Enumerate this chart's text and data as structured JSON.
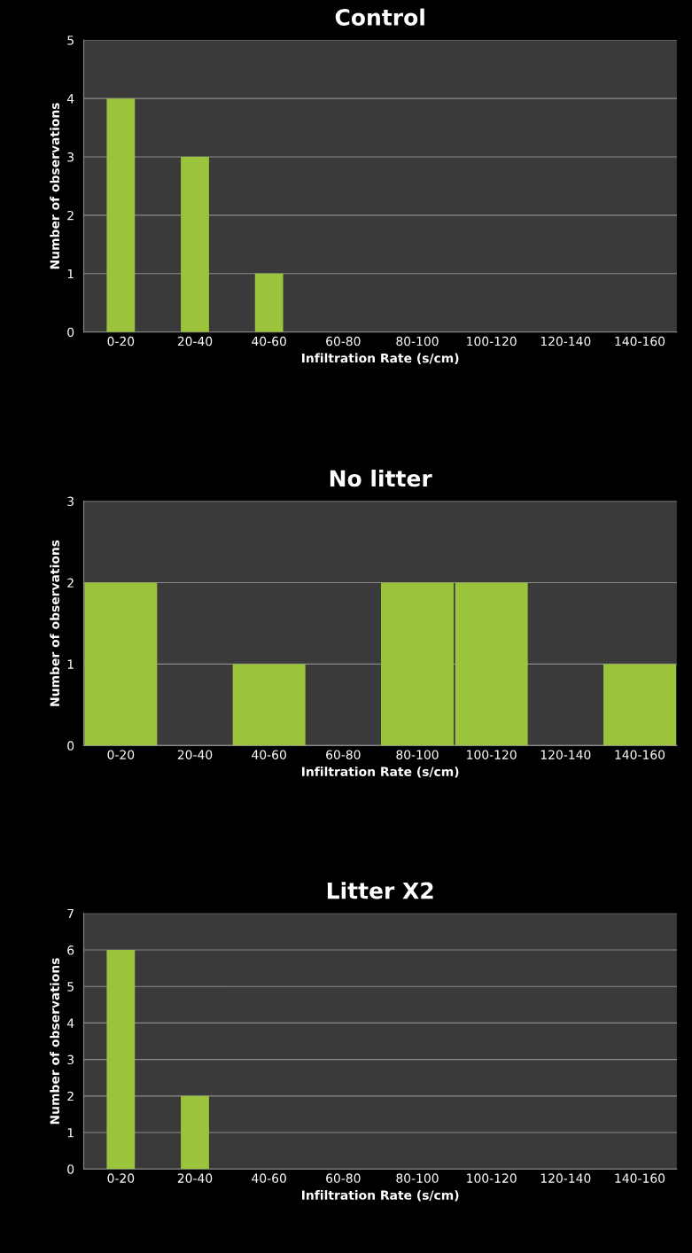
{
  "chart_data": [
    {
      "type": "bar",
      "title": "Control",
      "xlabel": "Infiltration Rate (s/cm)",
      "ylabel": "Number of observations",
      "categories": [
        "0-20",
        "20-40",
        "40-60",
        "60-80",
        "80-100",
        "100-120",
        "120-140",
        "140-160"
      ],
      "values": [
        4,
        3,
        1,
        0,
        0,
        0,
        0,
        0
      ],
      "color": "#9bc43c",
      "ylim": [
        0,
        5
      ],
      "yticks": [
        0,
        1,
        2,
        3,
        4,
        5
      ],
      "grid": "y"
    },
    {
      "type": "bar",
      "title": "No litter",
      "xlabel": "Infiltration Rate (s/cm)",
      "ylabel": "Number of observations",
      "categories": [
        "0-20",
        "20-40",
        "40-60",
        "60-80",
        "80-100",
        "100-120",
        "120-140",
        "140-160"
      ],
      "values": [
        2,
        0,
        1,
        0,
        2,
        2,
        0,
        1
      ],
      "color": "#9bc43c",
      "ylim": [
        0,
        3
      ],
      "yticks": [
        0,
        1,
        2,
        3
      ],
      "grid": "y"
    },
    {
      "type": "bar",
      "title": "Litter X2",
      "xlabel": "Infiltration Rate (s/cm)",
      "ylabel": "Number of observations",
      "categories": [
        "0-20",
        "20-40",
        "40-60",
        "60-80",
        "80-100",
        "100-120",
        "120-140",
        "140-160"
      ],
      "values": [
        6,
        2,
        0,
        0,
        0,
        0,
        0,
        0
      ],
      "color": "#9bc43c",
      "ylim": [
        0,
        7
      ],
      "yticks": [
        0,
        1,
        2,
        3,
        4,
        5,
        6,
        7
      ],
      "grid": "y"
    }
  ]
}
